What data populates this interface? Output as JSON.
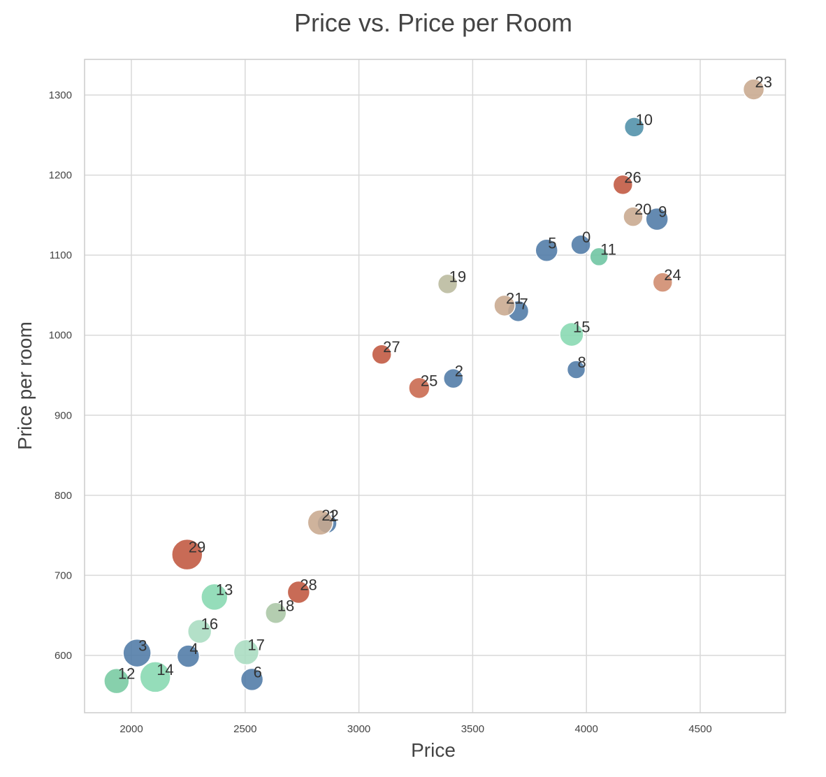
{
  "chart_data": {
    "type": "scatter",
    "title": "Price vs. Price per Room",
    "xlabel": "Price",
    "ylabel": "Price per room",
    "xlim": [
      1800,
      4850
    ],
    "ylim": [
      530,
      1345
    ],
    "xticks": [
      2000,
      2500,
      3000,
      3500,
      4000,
      4500
    ],
    "yticks": [
      600,
      700,
      800,
      900,
      1000,
      1100,
      1200,
      1300
    ],
    "grid": true,
    "legend": "none",
    "colors": {
      "blue": "#4e7aa6",
      "red": "#c0573f",
      "tan": "#c8a98e",
      "mint": "#86d8b0",
      "sage": "#aac6a5",
      "teal": "#4f8fa8",
      "olive": "#b9b99d",
      "salmon": "#cf8a6c"
    },
    "points": [
      {
        "label": "0",
        "x": 3975,
        "y": 1113,
        "size": 28,
        "color": "#4e7aa6"
      },
      {
        "label": "1",
        "x": 2860,
        "y": 765,
        "size": 28,
        "color": "#4e7aa6"
      },
      {
        "label": "2",
        "x": 3415,
        "y": 946,
        "size": 28,
        "color": "#4e7aa6"
      },
      {
        "label": "3",
        "x": 2025,
        "y": 603,
        "size": 40,
        "color": "#4e7aa6"
      },
      {
        "label": "4",
        "x": 2250,
        "y": 599,
        "size": 32,
        "color": "#4e7aa6"
      },
      {
        "label": "5",
        "x": 3825,
        "y": 1106,
        "size": 32,
        "color": "#4e7aa6"
      },
      {
        "label": "6",
        "x": 2530,
        "y": 570,
        "size": 32,
        "color": "#4e7aa6"
      },
      {
        "label": "7",
        "x": 3700,
        "y": 1030,
        "size": 30,
        "color": "#4e7aa6"
      },
      {
        "label": "8",
        "x": 3955,
        "y": 957,
        "size": 26,
        "color": "#4e7aa6"
      },
      {
        "label": "9",
        "x": 4310,
        "y": 1145,
        "size": 32,
        "color": "#4e7aa6"
      },
      {
        "label": "10",
        "x": 4210,
        "y": 1260,
        "size": 28,
        "color": "#4f8fa8"
      },
      {
        "label": "11",
        "x": 4055,
        "y": 1098,
        "size": 26,
        "color": "#6cc4a0"
      },
      {
        "label": "12",
        "x": 1935,
        "y": 568,
        "size": 36,
        "color": "#76c9a0"
      },
      {
        "label": "13",
        "x": 2365,
        "y": 673,
        "size": 38,
        "color": "#86d8b0"
      },
      {
        "label": "14",
        "x": 2105,
        "y": 573,
        "size": 44,
        "color": "#86d8b0"
      },
      {
        "label": "15",
        "x": 3935,
        "y": 1001,
        "size": 34,
        "color": "#86d8b0"
      },
      {
        "label": "16",
        "x": 2300,
        "y": 630,
        "size": 34,
        "color": "#a8dcc0"
      },
      {
        "label": "17",
        "x": 2505,
        "y": 604,
        "size": 36,
        "color": "#a8dcc0"
      },
      {
        "label": "18",
        "x": 2635,
        "y": 653,
        "size": 30,
        "color": "#aac6a5"
      },
      {
        "label": "19",
        "x": 3390,
        "y": 1064,
        "size": 28,
        "color": "#b9b99d"
      },
      {
        "label": "20",
        "x": 4205,
        "y": 1148,
        "size": 28,
        "color": "#c8a98e"
      },
      {
        "label": "21",
        "x": 3640,
        "y": 1037,
        "size": 30,
        "color": "#c8a98e"
      },
      {
        "label": "22",
        "x": 2830,
        "y": 766,
        "size": 36,
        "color": "#c8a98e"
      },
      {
        "label": "23",
        "x": 4735,
        "y": 1307,
        "size": 30,
        "color": "#c8a98e"
      },
      {
        "label": "24",
        "x": 4335,
        "y": 1066,
        "size": 28,
        "color": "#cf8a6c"
      },
      {
        "label": "25",
        "x": 3265,
        "y": 934,
        "size": 30,
        "color": "#c8674c"
      },
      {
        "label": "26",
        "x": 4160,
        "y": 1188,
        "size": 28,
        "color": "#c0573f"
      },
      {
        "label": "27",
        "x": 3100,
        "y": 976,
        "size": 28,
        "color": "#c0573f"
      },
      {
        "label": "28",
        "x": 2735,
        "y": 679,
        "size": 32,
        "color": "#c0573f"
      },
      {
        "label": "29",
        "x": 2245,
        "y": 726,
        "size": 44,
        "color": "#c0573f"
      }
    ]
  }
}
